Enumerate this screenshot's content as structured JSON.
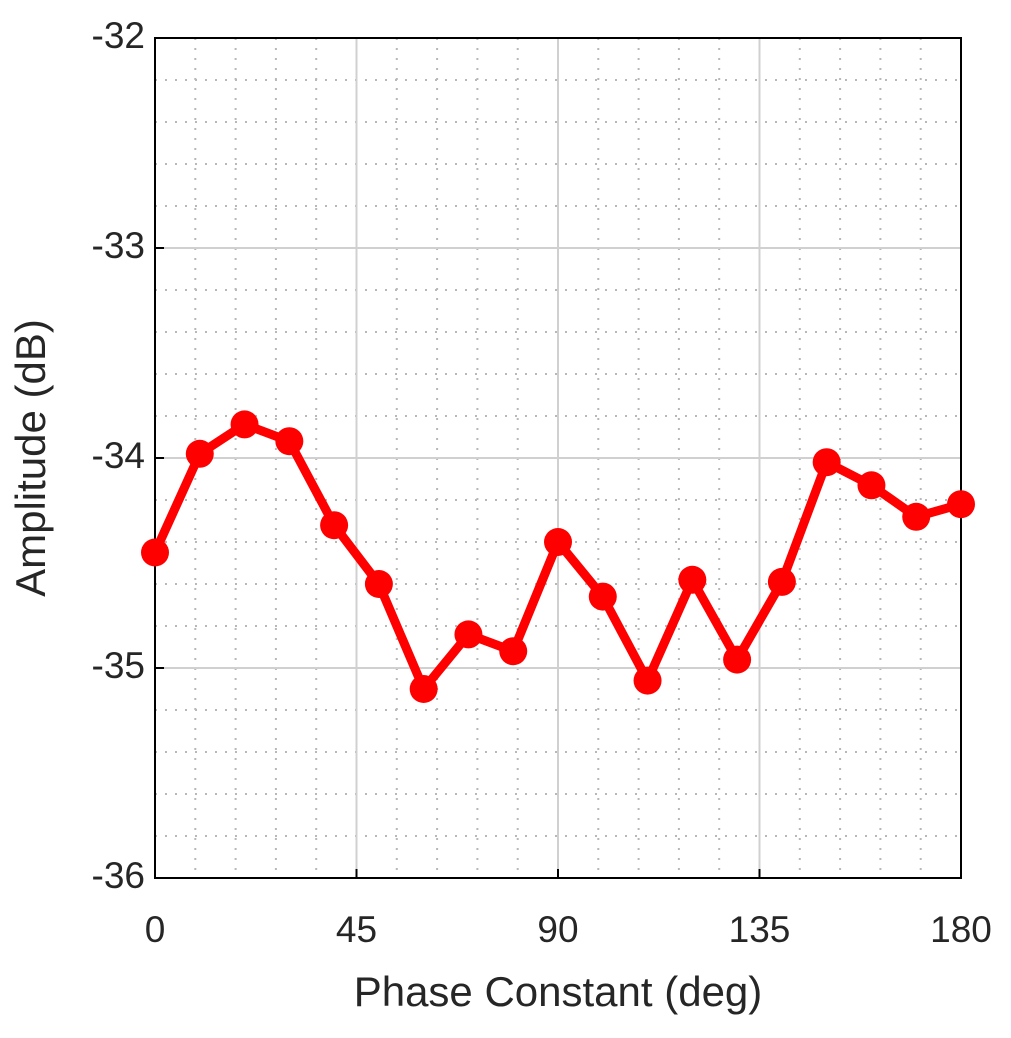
{
  "chart_data": {
    "type": "line",
    "x_label": "Phase Constant (deg)",
    "y_label": "Amplitude (dB)",
    "x": [
      0,
      10,
      20,
      30,
      40,
      50,
      60,
      70,
      80,
      90,
      100,
      110,
      120,
      130,
      140,
      150,
      160,
      170,
      180
    ],
    "series": [
      {
        "color": "#ff0000",
        "values": [
          -34.45,
          -33.98,
          -33.84,
          -33.92,
          -34.32,
          -34.6,
          -35.1,
          -34.84,
          -34.92,
          -34.4,
          -34.66,
          -35.06,
          -34.58,
          -34.96,
          -34.59,
          -34.02,
          -34.13,
          -34.28,
          -34.22
        ]
      }
    ],
    "xlim": [
      0,
      180
    ],
    "xticks": [
      0,
      45,
      90,
      135,
      180
    ],
    "ylim": [
      -36,
      -32
    ],
    "yticks": [
      -36,
      -35,
      -34,
      -33,
      -32
    ],
    "grid": true,
    "minor_grid": true
  }
}
